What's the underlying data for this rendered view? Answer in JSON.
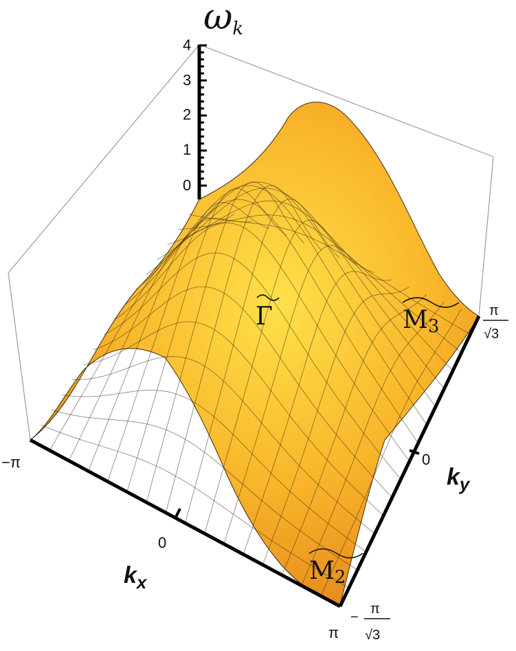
{
  "chart_data": {
    "type": "surface",
    "title": "ωk",
    "zlabel": "ω_k",
    "xlabel": "k_x",
    "ylabel": "k_y",
    "xlim": [
      "-π",
      "π"
    ],
    "ylim": [
      "-π/√3",
      "π/√3"
    ],
    "zlim": [
      0,
      4
    ],
    "x_ticks": [
      "-π",
      "0",
      "π"
    ],
    "y_ticks": [
      "-π/√3",
      "0",
      "π/√3"
    ],
    "z_ticks": [
      "0",
      "1",
      "2",
      "3",
      "4"
    ],
    "points": [
      {
        "name": "Γ",
        "label": "Γ̃",
        "kx": 0,
        "ky": 0,
        "omega": 0
      },
      {
        "name": "M2",
        "label": "M̃2",
        "kx": "π",
        "ky": "-π/√3",
        "omega": 0
      },
      {
        "name": "M3",
        "label": "M̃3",
        "kx": "π",
        "ky": "π/√3",
        "omega": 0
      }
    ],
    "surface_color": "#F7B52A",
    "box": true
  },
  "labels": {
    "omega_main": "ω",
    "omega_sub": "k",
    "kx_main": "k",
    "kx_sub": "x",
    "ky_main": "k",
    "ky_sub": "y",
    "gamma": "Γ",
    "m_main": "M",
    "m2_sub": "2",
    "m3_sub": "3",
    "tick_minus_pi": "−π",
    "tick_zero_x": "0",
    "tick_pi": "π",
    "tick_zero_y": "0",
    "frac_num_top": "π",
    "frac_den_top": "√3",
    "frac_minus": "−",
    "frac_num_bot": "π",
    "frac_den_bot": "√3",
    "z0": "0",
    "z1": "1",
    "z2": "2",
    "z3": "3",
    "z4": "4"
  }
}
